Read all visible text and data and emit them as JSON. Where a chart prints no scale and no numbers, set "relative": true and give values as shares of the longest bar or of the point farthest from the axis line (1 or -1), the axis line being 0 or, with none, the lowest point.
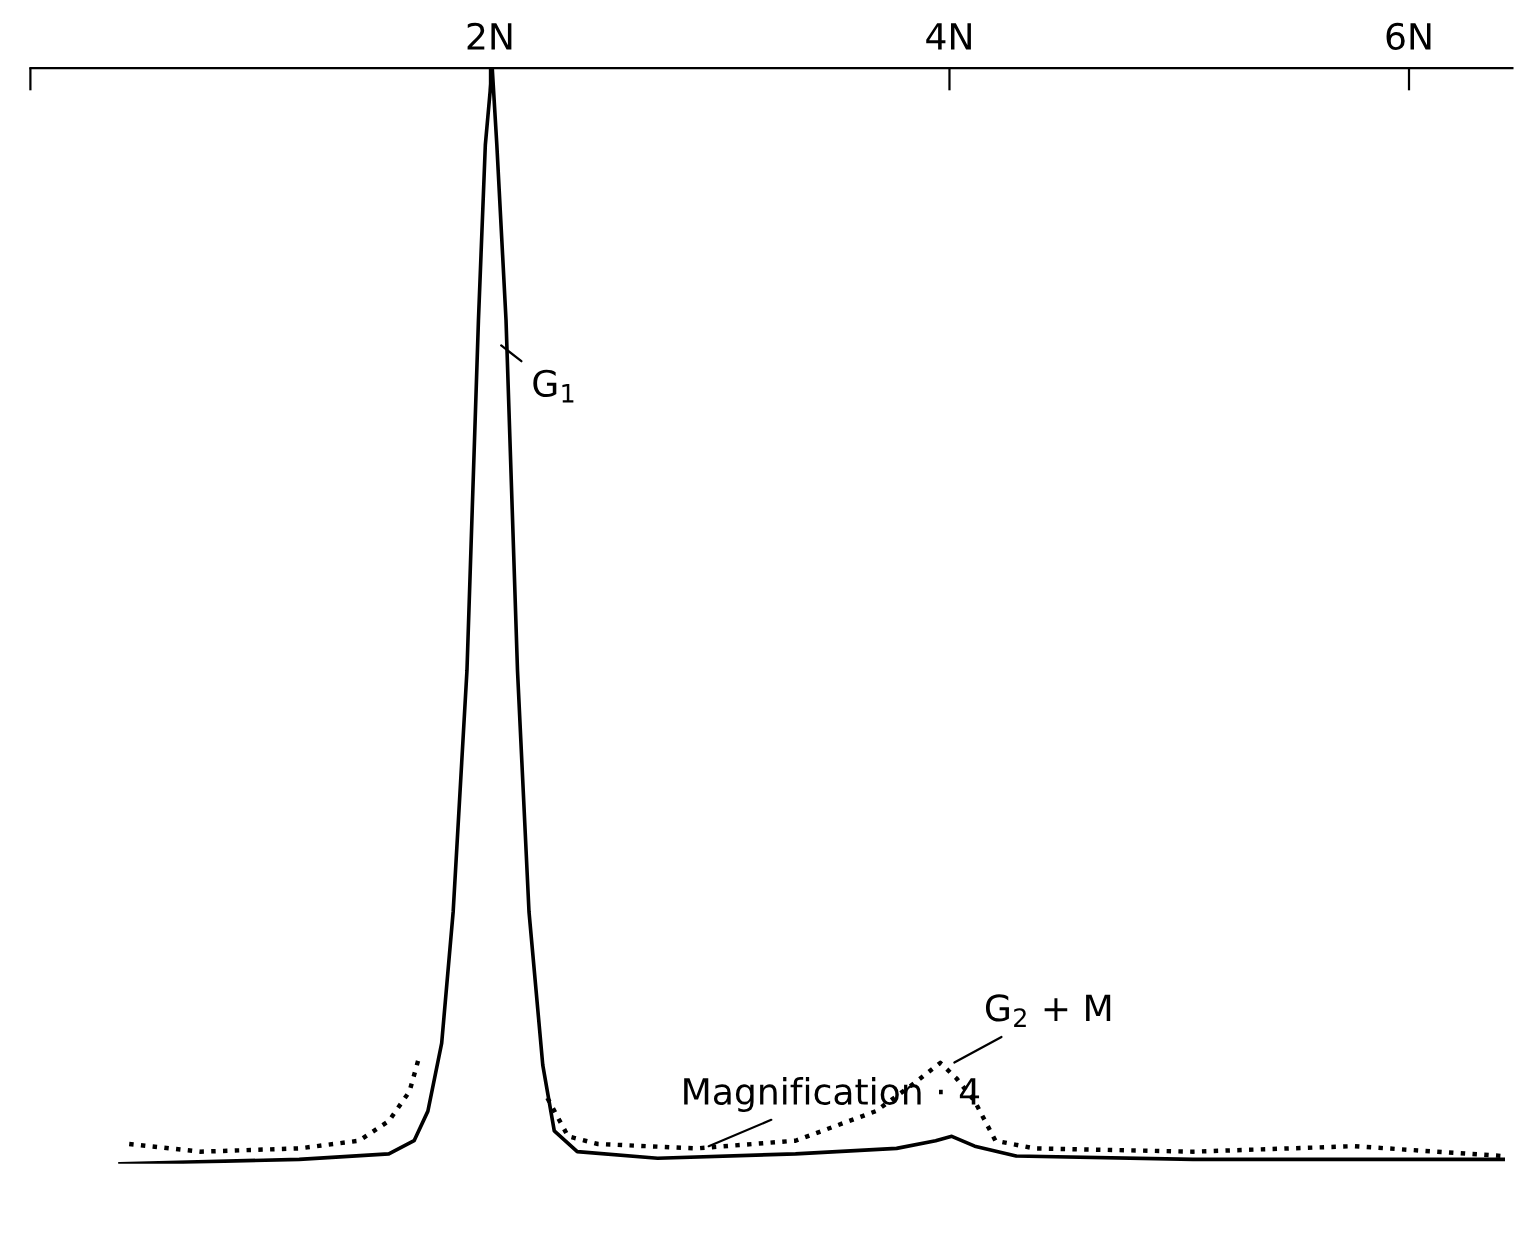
{
  "chart_data": {
    "type": "line",
    "relative": true,
    "xlim": [
      0,
      6.45
    ],
    "xticks": [
      {
        "value": 0,
        "label": null
      },
      {
        "value": 2,
        "label": "2N"
      },
      {
        "value": 4,
        "label": "4N"
      },
      {
        "value": 6,
        "label": "6N"
      }
    ],
    "series": [
      {
        "color": "#000000",
        "line_style": "solid",
        "x": [
          0.39,
          1.17,
          1.56,
          1.67,
          1.73,
          1.79,
          1.84,
          1.9,
          1.95,
          1.98,
          2.01,
          2.03,
          2.07,
          2.12,
          2.17,
          2.23,
          2.28,
          2.38,
          2.73,
          3.33,
          3.77,
          3.94,
          4.01,
          4.11,
          4.29,
          5.06,
          6.41
        ],
        "values": [
          0.0,
          0.004,
          0.009,
          0.021,
          0.048,
          0.11,
          0.23,
          0.45,
          0.77,
          0.93,
          1.0,
          0.93,
          0.77,
          0.45,
          0.23,
          0.09,
          0.03,
          0.011,
          0.005,
          0.009,
          0.014,
          0.021,
          0.025,
          0.016,
          0.007,
          0.004,
          0.004
        ]
      },
      {
        "color": "#000000",
        "line_style": "dotted",
        "x": [
          0.43,
          0.74,
          1.17,
          1.43,
          1.56,
          1.65,
          1.69,
          2.0,
          2.25,
          2.34,
          2.47,
          2.9,
          3.33,
          3.68,
          3.85,
          3.96,
          4.03,
          4.11,
          4.2,
          4.37,
          5.06,
          5.76,
          6.41
        ],
        "values": [
          0.018,
          0.011,
          0.014,
          0.021,
          0.039,
          0.066,
          0.096,
          null,
          0.06,
          0.025,
          0.018,
          0.014,
          0.021,
          0.048,
          0.074,
          0.092,
          0.078,
          0.057,
          0.021,
          0.014,
          0.011,
          0.016,
          0.007
        ]
      }
    ],
    "annotations": [
      {
        "text": "G$_{1}$",
        "x": 2.03,
        "y": 0.75
      },
      {
        "text": "G$_{2}$ + M",
        "x": 4.0,
        "y": 0.09
      },
      {
        "text": "Magnification · 4",
        "x": 2.93,
        "y": 0.014
      }
    ],
    "grid": false,
    "legend": false
  }
}
